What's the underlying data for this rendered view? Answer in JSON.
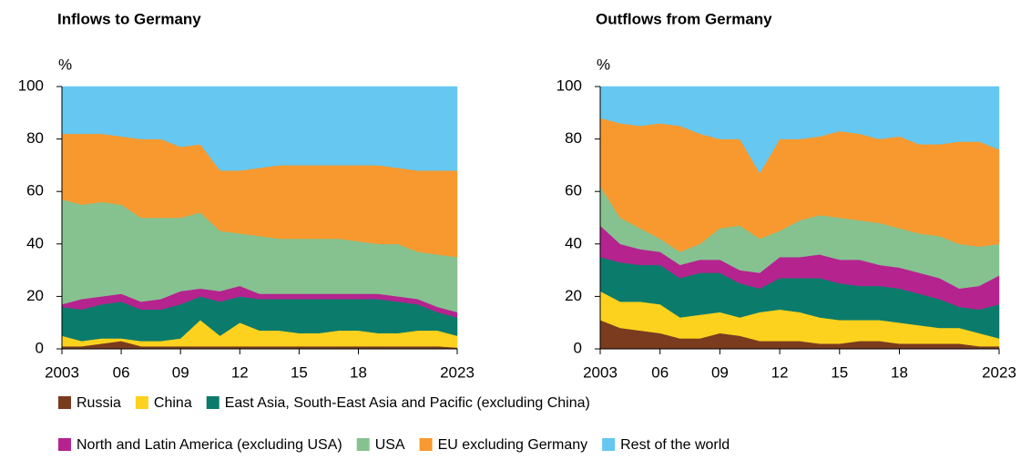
{
  "chart_data": [
    {
      "type": "stacked-area",
      "title": "Inflows to Germany",
      "y_label": "%",
      "x": [
        2003,
        2004,
        2005,
        2006,
        2007,
        2008,
        2009,
        2010,
        2011,
        2012,
        2013,
        2014,
        2015,
        2016,
        2017,
        2018,
        2019,
        2020,
        2021,
        2022,
        2023
      ],
      "xlim": [
        2003,
        2023
      ],
      "xticks": [
        2003,
        {
          "value": 2006,
          "label": "06"
        },
        {
          "value": 2009,
          "label": "09"
        },
        {
          "value": 2012,
          "label": "12"
        },
        {
          "value": 2015,
          "label": "15"
        },
        {
          "value": 2018,
          "label": "18"
        },
        2023
      ],
      "ylim": [
        0,
        100
      ],
      "yticks": [
        0,
        20,
        40,
        60,
        80,
        100
      ],
      "series": [
        {
          "name": "Russia",
          "color": "#7a3b1f",
          "values": [
            1,
            1,
            2,
            3,
            1,
            1,
            1,
            1,
            1,
            1,
            1,
            1,
            1,
            1,
            1,
            1,
            1,
            1,
            1,
            1,
            0.5
          ]
        },
        {
          "name": "China",
          "color": "#fcd21e",
          "values": [
            4,
            2,
            2,
            1,
            2,
            2,
            3,
            10,
            4,
            9,
            6,
            6,
            5,
            5,
            6,
            6,
            5,
            5,
            6,
            6,
            4.5
          ]
        },
        {
          "name": "East Asia, South-East Asia and Pacific (excluding China)",
          "color": "#0b7b6b",
          "values": [
            11,
            12,
            13,
            14,
            12,
            12,
            13,
            9,
            13,
            10,
            12,
            12,
            13,
            13,
            12,
            12,
            13,
            12,
            10,
            7,
            7
          ]
        },
        {
          "name": "North and Latin America (excluding USA)",
          "color": "#b5238f",
          "values": [
            1,
            4,
            3,
            3,
            3,
            4,
            5,
            3,
            4,
            4,
            2,
            2,
            2,
            2,
            2,
            2,
            2,
            2,
            2,
            2,
            2
          ]
        },
        {
          "name": "USA",
          "color": "#86c290",
          "values": [
            40,
            36,
            36,
            34,
            32,
            31,
            28,
            29,
            23,
            20,
            22,
            21,
            21,
            21,
            21,
            20,
            19,
            20,
            18,
            20,
            21
          ]
        },
        {
          "name": "EU excluding Germany",
          "color": "#f7992e",
          "values": [
            25,
            27,
            26,
            26,
            30,
            30,
            27,
            26,
            23,
            24,
            26,
            28,
            28,
            28,
            28,
            29,
            30,
            29,
            31,
            32,
            33
          ]
        },
        {
          "name": "Rest of the world",
          "color": "#66c7f0",
          "values": [
            18,
            18,
            18,
            19,
            20,
            20,
            23,
            22,
            32,
            32,
            31,
            30,
            30,
            30,
            30,
            30,
            30,
            31,
            32,
            32,
            32
          ]
        }
      ]
    },
    {
      "type": "stacked-area",
      "title": "Outflows from Germany",
      "y_label": "%",
      "x": [
        2003,
        2004,
        2005,
        2006,
        2007,
        2008,
        2009,
        2010,
        2011,
        2012,
        2013,
        2014,
        2015,
        2016,
        2017,
        2018,
        2019,
        2020,
        2021,
        2022,
        2023
      ],
      "xlim": [
        2003,
        2023
      ],
      "xticks": [
        2003,
        {
          "value": 2006,
          "label": "06"
        },
        {
          "value": 2009,
          "label": "09"
        },
        {
          "value": 2012,
          "label": "12"
        },
        {
          "value": 2015,
          "label": "15"
        },
        {
          "value": 2018,
          "label": "18"
        },
        2023
      ],
      "ylim": [
        0,
        100
      ],
      "yticks": [
        0,
        20,
        40,
        60,
        80,
        100
      ],
      "series": [
        {
          "color": "#7a3b1f",
          "values": [
            11,
            8,
            7,
            6,
            4,
            4,
            6,
            5,
            3,
            3,
            3,
            2,
            2,
            3,
            3,
            2,
            2,
            2,
            2,
            1,
            1
          ]
        },
        {
          "color": "#fcd21e",
          "values": [
            11,
            10,
            11,
            11,
            8,
            9,
            8,
            7,
            11,
            12,
            11,
            10,
            9,
            8,
            8,
            8,
            7,
            6,
            6,
            5,
            3
          ]
        },
        {
          "color": "#0b7b6b",
          "values": [
            13,
            15,
            14,
            15,
            15,
            16,
            15,
            13,
            9,
            12,
            13,
            15,
            14,
            13,
            13,
            13,
            12,
            11,
            8,
            9,
            13
          ]
        },
        {
          "color": "#b5238f",
          "values": [
            12,
            7,
            6,
            5,
            5,
            5,
            5,
            5,
            6,
            8,
            8,
            9,
            9,
            10,
            8,
            8,
            8,
            8,
            7,
            9,
            11
          ]
        },
        {
          "color": "#86c290",
          "values": [
            15,
            10,
            8,
            5,
            5,
            6,
            12,
            17,
            13,
            10,
            14,
            15,
            16,
            15,
            16,
            15,
            15,
            16,
            17,
            15,
            12
          ]
        },
        {
          "color": "#f7992e",
          "values": [
            26,
            36,
            39,
            44,
            48,
            42,
            34,
            33,
            25,
            35,
            31,
            30,
            33,
            33,
            32,
            35,
            34,
            35,
            39,
            40,
            36
          ]
        },
        {
          "color": "#66c7f0",
          "values": [
            12,
            14,
            15,
            14,
            15,
            18,
            20,
            20,
            33,
            20,
            20,
            19,
            17,
            18,
            20,
            19,
            22,
            22,
            21,
            21,
            24
          ]
        }
      ]
    }
  ]
}
